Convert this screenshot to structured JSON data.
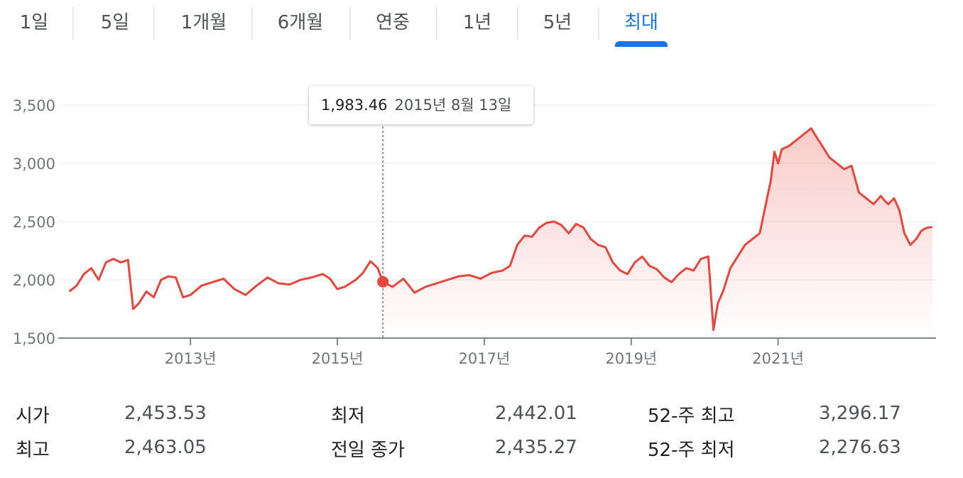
{
  "tabs": [
    {
      "label": "1일"
    },
    {
      "label": "5일"
    },
    {
      "label": "1개월"
    },
    {
      "label": "6개월"
    },
    {
      "label": "연중"
    },
    {
      "label": "1년"
    },
    {
      "label": "5년"
    },
    {
      "label": "최대",
      "active": true
    }
  ],
  "tooltip": {
    "value": "1,983.46",
    "date": "2015년 8월 13일"
  },
  "stats": {
    "open_label": "시가",
    "open_value": "2,453.53",
    "high_label": "최고",
    "high_value": "2,463.05",
    "low_label": "최저",
    "low_value": "2,442.01",
    "prev_close_label": "전일 종가",
    "prev_close_value": "2,435.27",
    "wk52_high_label": "52-주 최고",
    "wk52_high_value": "3,296.17",
    "wk52_low_label": "52-주 최저",
    "wk52_low_value": "2,276.63"
  },
  "colors": {
    "line": "#e8453c",
    "accent": "#1a73e8",
    "grid": "#e8eaed"
  },
  "chart_data": {
    "type": "line",
    "xlim": [
      2011.2,
      2023.15
    ],
    "ylim": [
      1500,
      3500
    ],
    "y_ticks": [
      1500,
      2000,
      2500,
      3000,
      3500
    ],
    "y_tick_labels": [
      "1,500",
      "2,000",
      "2,500",
      "3,000",
      "3,500"
    ],
    "x_ticks": [
      2013,
      2015,
      2017,
      2019,
      2021
    ],
    "x_tick_labels": [
      "2013년",
      "2015년",
      "2017년",
      "2019년",
      "2021년"
    ],
    "grid": true,
    "highlight_x": 2015.62,
    "highlight_y": 1983.46,
    "x": [
      2011.35,
      2011.45,
      2011.55,
      2011.65,
      2011.75,
      2011.85,
      2011.95,
      2012.05,
      2012.15,
      2012.22,
      2012.3,
      2012.4,
      2012.5,
      2012.6,
      2012.7,
      2012.8,
      2012.9,
      2013.0,
      2013.15,
      2013.3,
      2013.45,
      2013.6,
      2013.75,
      2013.9,
      2014.05,
      2014.2,
      2014.35,
      2014.5,
      2014.65,
      2014.8,
      2014.9,
      2015.0,
      2015.1,
      2015.25,
      2015.35,
      2015.45,
      2015.55,
      2015.62,
      2015.75,
      2015.9,
      2016.05,
      2016.2,
      2016.35,
      2016.5,
      2016.65,
      2016.8,
      2016.95,
      2017.1,
      2017.25,
      2017.35,
      2017.45,
      2017.55,
      2017.65,
      2017.75,
      2017.85,
      2017.95,
      2018.05,
      2018.15,
      2018.25,
      2018.35,
      2018.45,
      2018.55,
      2018.65,
      2018.75,
      2018.85,
      2018.95,
      2019.05,
      2019.15,
      2019.25,
      2019.35,
      2019.45,
      2019.55,
      2019.65,
      2019.75,
      2019.85,
      2019.95,
      2020.05,
      2020.12,
      2020.18,
      2020.25,
      2020.35,
      2020.45,
      2020.55,
      2020.65,
      2020.75,
      2020.85,
      2020.9,
      2020.95,
      2021.0,
      2021.05,
      2021.15,
      2021.25,
      2021.35,
      2021.45,
      2021.5,
      2021.6,
      2021.7,
      2021.8,
      2021.9,
      2022.0,
      2022.1,
      2022.2,
      2022.3,
      2022.4,
      2022.45,
      2022.5,
      2022.58,
      2022.65,
      2022.72,
      2022.8,
      2022.88,
      2022.95,
      2023.0,
      2023.05,
      2023.1
    ],
    "values": [
      1900,
      1950,
      2050,
      2100,
      2000,
      2150,
      2180,
      2150,
      2170,
      1750,
      1800,
      1900,
      1850,
      2000,
      2030,
      2020,
      1850,
      1870,
      1950,
      1980,
      2010,
      1920,
      1870,
      1950,
      2020,
      1970,
      1960,
      2000,
      2020,
      2050,
      2010,
      1920,
      1940,
      2000,
      2060,
      2160,
      2100,
      1983.46,
      1940,
      2010,
      1890,
      1940,
      1970,
      2000,
      2030,
      2040,
      2010,
      2060,
      2080,
      2120,
      2300,
      2380,
      2370,
      2450,
      2490,
      2500,
      2470,
      2400,
      2480,
      2450,
      2350,
      2300,
      2280,
      2150,
      2080,
      2050,
      2150,
      2200,
      2120,
      2090,
      2020,
      1980,
      2050,
      2100,
      2080,
      2180,
      2200,
      1570,
      1800,
      1900,
      2100,
      2200,
      2300,
      2350,
      2400,
      2700,
      2850,
      3100,
      3000,
      3120,
      3150,
      3200,
      3250,
      3300,
      3250,
      3150,
      3050,
      3000,
      2950,
      2980,
      2750,
      2700,
      2650,
      2720,
      2680,
      2650,
      2700,
      2600,
      2400,
      2300,
      2350,
      2420,
      2440,
      2450,
      2453.53
    ]
  }
}
